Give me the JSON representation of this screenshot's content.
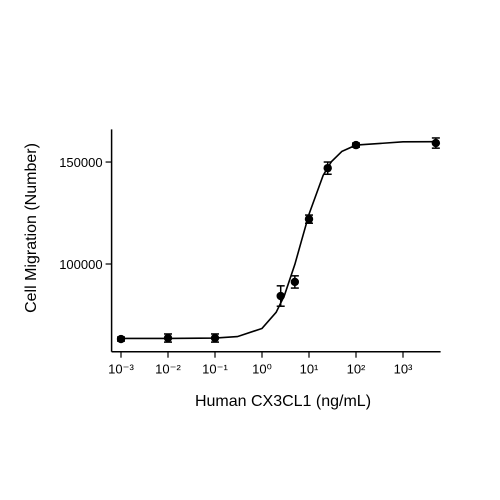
{
  "chart_data": {
    "type": "scatter",
    "xlabel": "Human CX3CL1 (ng/mL)",
    "ylabel": "Cell Migration (Number)",
    "xscale": "log",
    "xlim": [
      0.000631,
      6310
    ],
    "ylim": [
      57000,
      166000
    ],
    "xticks": [
      {
        "value": 0.001,
        "label": "10⁻³"
      },
      {
        "value": 0.01,
        "label": "10⁻²"
      },
      {
        "value": 0.1,
        "label": "10⁻¹"
      },
      {
        "value": 1,
        "label": "10⁰"
      },
      {
        "value": 10,
        "label": "10¹"
      },
      {
        "value": 100,
        "label": "10²"
      },
      {
        "value": 1000,
        "label": "10³"
      }
    ],
    "yticks": [
      100000,
      150000
    ],
    "color": "#000000",
    "series": [
      {
        "type": "scatter",
        "x": [
          0.001,
          0.01,
          0.1,
          2.5,
          5,
          10,
          25,
          100,
          5000
        ],
        "values": [
          63200,
          63700,
          63700,
          84300,
          91200,
          122000,
          147000,
          158300,
          159300
        ],
        "errors": [
          1000,
          2000,
          2000,
          5000,
          3000,
          2000,
          3000,
          1000,
          2500
        ]
      },
      {
        "type": "line",
        "x": [
          0.001,
          0.01,
          0.1,
          0.3,
          1,
          2,
          3,
          5,
          7,
          10,
          20,
          30,
          50,
          100,
          1000,
          5000
        ],
        "values": [
          63500,
          63500,
          63700,
          64400,
          68400,
          76300,
          84600,
          99800,
          111800,
          124400,
          143500,
          150200,
          155200,
          158300,
          159900,
          160000
        ]
      }
    ]
  }
}
